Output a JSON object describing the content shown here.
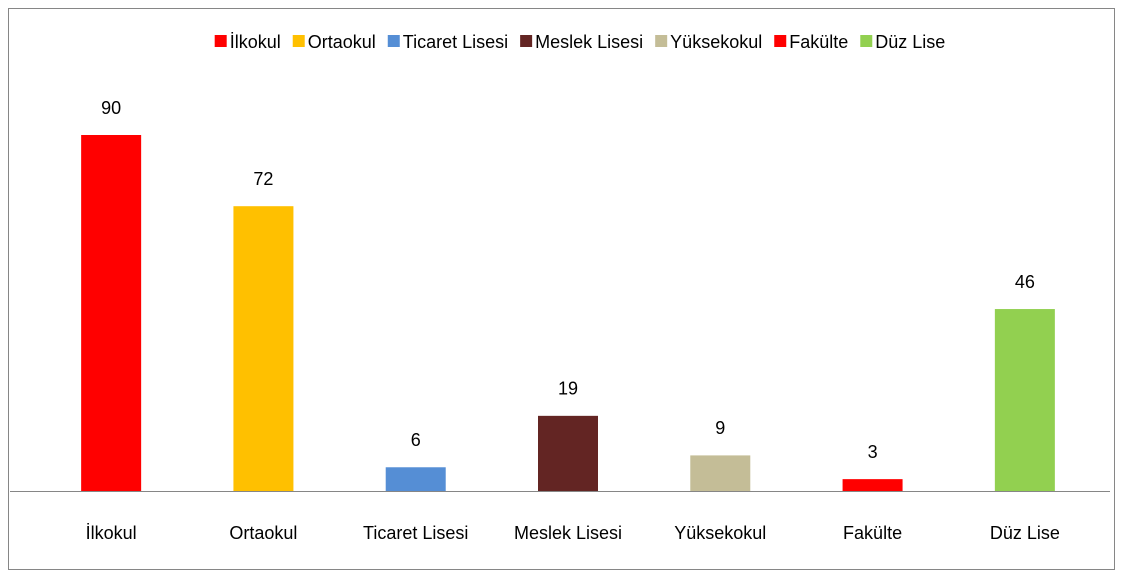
{
  "chart_data": {
    "type": "bar",
    "categories": [
      "İlkokul",
      "Ortaokul",
      "Ticaret Lisesi",
      "Meslek Lisesi",
      "Yüksekokul",
      "Fakülte",
      "Düz Lise"
    ],
    "values": [
      90,
      72,
      6,
      19,
      9,
      3,
      46
    ],
    "colors": [
      "#ff0000",
      "#ffc000",
      "#558ed5",
      "#632523",
      "#c4bd97",
      "#ff0000",
      "#92d050"
    ],
    "legend": "top",
    "grid": false
  }
}
